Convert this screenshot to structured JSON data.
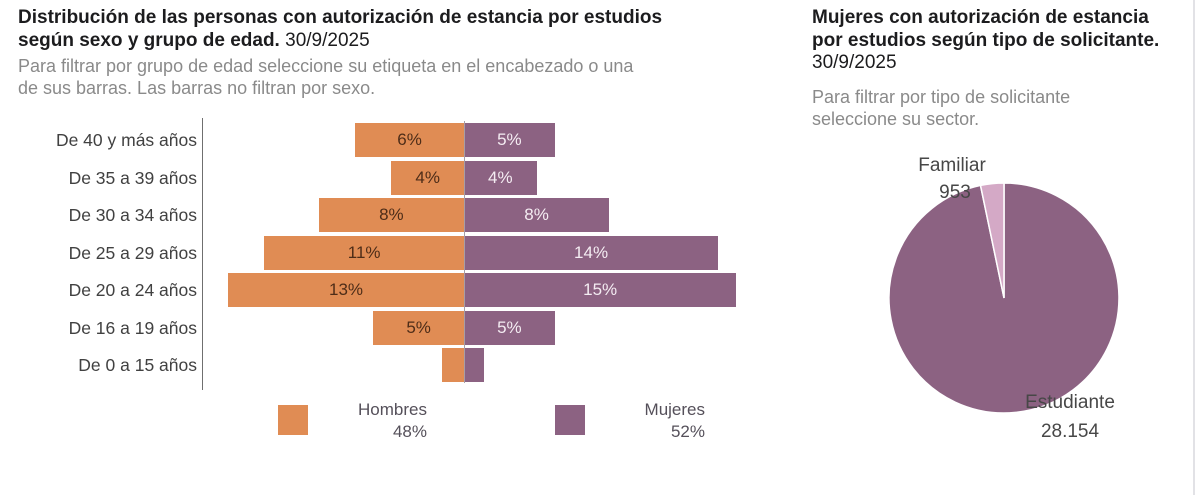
{
  "colors": {
    "hombres": "#E08C54",
    "mujeres": "#8C6282",
    "familiar": "#D4A9C6",
    "bar_label_dark": "#4E2D18",
    "bar_label_light": "#F4ECF2"
  },
  "left_chart": {
    "title_line1": "Distribución de las personas con autorización de estancia por estudios",
    "title_line2": "según sexo y grupo de edad.",
    "title_date": "30/9/2025",
    "subtitle_line1": "Para filtrar por grupo de edad seleccione su etiqueta en el encabezado o una",
    "subtitle_line2": "de sus barras. Las barras no filtran por sexo."
  },
  "right_chart": {
    "title_line1": "Mujeres con autorización de estancia",
    "title_line2": "por estudios según tipo de solicitante.",
    "title_date": "30/9/2025",
    "subtitle_line1": "Para filtrar por tipo de solicitante",
    "subtitle_line2": "seleccione su sector."
  },
  "chart_data": [
    {
      "type": "bar",
      "variant": "population-pyramid",
      "title": "Distribución de las personas con autorización de estancia por estudios según sexo y grupo de edad. 30/9/2025",
      "categories": [
        "De 40 y más años",
        "De 35 a 39 años",
        "De 30 a 34 años",
        "De 25 a 29 años",
        "De 20 a 24 años",
        "De 16 a 19 años",
        "De 0 a 15 años"
      ],
      "series": [
        {
          "name": "Hombres",
          "total": "48%",
          "color": "#E08C54",
          "values": [
            6,
            4,
            8,
            11,
            13,
            5,
            1.2
          ],
          "bar_labels": [
            "6%",
            "4%",
            "8%",
            "11%",
            "13%",
            "5%",
            ""
          ]
        },
        {
          "name": "Mujeres",
          "total": "52%",
          "color": "#8C6282",
          "values": [
            5,
            4,
            8,
            14,
            15,
            5,
            1.1
          ],
          "bar_labels": [
            "5%",
            "4%",
            "8%",
            "14%",
            "15%",
            "5%",
            ""
          ]
        }
      ],
      "unit": "%",
      "xlim_each_side": [
        0,
        16
      ],
      "legend_position": "bottom",
      "grid": false
    },
    {
      "type": "pie",
      "title": "Mujeres con autorización de estancia por estudios según tipo de solicitante. 30/9/2025",
      "slices": [
        {
          "label": "Estudiante",
          "value": 28154,
          "display": "28.154",
          "color": "#8C6282"
        },
        {
          "label": "Familiar",
          "value": 953,
          "display": "953",
          "color": "#D4A9C6"
        }
      ],
      "start_angle_deg": 0,
      "direction": "clockwise",
      "legend_position": "none"
    }
  ]
}
